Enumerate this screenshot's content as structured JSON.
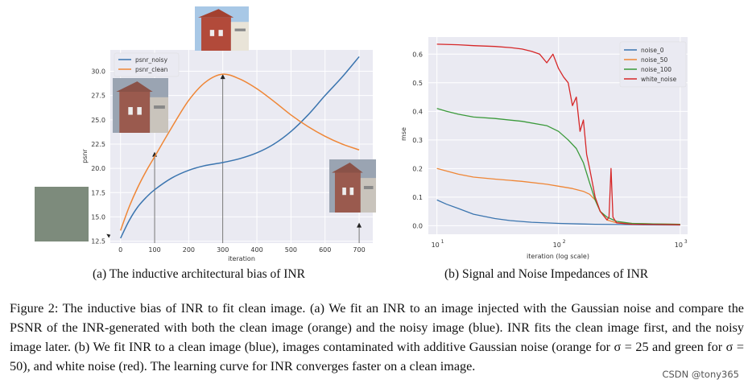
{
  "chart_data": [
    {
      "type": "line",
      "xlabel": "iteration",
      "ylabel": "psnr",
      "xlim": [
        -30,
        740
      ],
      "ylim": [
        12.3,
        32.2
      ],
      "xticks": [
        0,
        100,
        200,
        300,
        400,
        500,
        600,
        700
      ],
      "yticks": [
        12.5,
        15.0,
        17.5,
        20.0,
        22.5,
        25.0,
        27.5,
        30.0
      ],
      "ytick_labels": [
        "12.5",
        "15.0",
        "17.5",
        "20.0",
        "22.5",
        "25.0",
        "27.5",
        "30.0"
      ],
      "legend_position": "top-left",
      "grid": true,
      "series": [
        {
          "name": "psnr_noisy",
          "color": "#3b75af",
          "x": [
            0,
            25,
            50,
            75,
            100,
            150,
            200,
            250,
            300,
            350,
            400,
            450,
            500,
            550,
            600,
            650,
            700
          ],
          "y": [
            12.8,
            14.6,
            16.0,
            17.0,
            17.8,
            19.0,
            19.8,
            20.3,
            20.6,
            21.0,
            21.6,
            22.5,
            23.8,
            25.5,
            27.5,
            29.4,
            31.5
          ]
        },
        {
          "name": "psnr_clean",
          "color": "#ef8636",
          "x": [
            0,
            25,
            50,
            75,
            100,
            150,
            200,
            250,
            300,
            350,
            400,
            450,
            500,
            550,
            600,
            650,
            700
          ],
          "y": [
            13.6,
            16.0,
            18.0,
            19.7,
            21.2,
            24.2,
            27.0,
            28.9,
            29.7,
            29.2,
            28.2,
            26.9,
            25.5,
            24.3,
            23.3,
            22.5,
            21.9
          ]
        }
      ],
      "annotation_arrows_x": [
        -20,
        100,
        300,
        700
      ],
      "annotation_arrows_y": [
        12.5,
        21.7,
        29.7,
        14.4
      ]
    },
    {
      "type": "line",
      "xlabel": "iteration (log scale)",
      "ylabel": "mse",
      "xscale": "log",
      "xlim": [
        8.5,
        1150
      ],
      "ylim": [
        -0.03,
        0.66
      ],
      "xticks": [
        10,
        100,
        1000
      ],
      "xtick_base": "10",
      "xtick_exponents": [
        "1",
        "2",
        "3"
      ],
      "yticks": [
        0.0,
        0.1,
        0.2,
        0.3,
        0.4,
        0.5,
        0.6
      ],
      "ytick_labels": [
        "0.0",
        "0.1",
        "0.2",
        "0.3",
        "0.4",
        "0.5",
        "0.6"
      ],
      "legend_position": "top-right",
      "grid": true,
      "series": [
        {
          "name": "noise_0",
          "color": "#3b75af",
          "x": [
            10,
            12,
            15,
            20,
            30,
            40,
            60,
            100,
            150,
            200,
            300,
            500,
            1000
          ],
          "y": [
            0.09,
            0.075,
            0.06,
            0.04,
            0.025,
            0.018,
            0.012,
            0.008,
            0.006,
            0.005,
            0.004,
            0.003,
            0.002
          ]
        },
        {
          "name": "noise_50",
          "color": "#ef8636",
          "x": [
            10,
            15,
            20,
            30,
            50,
            80,
            100,
            130,
            160,
            180,
            200,
            220,
            250,
            300,
            400,
            600,
            1000
          ],
          "y": [
            0.2,
            0.18,
            0.17,
            0.163,
            0.155,
            0.145,
            0.138,
            0.13,
            0.12,
            0.11,
            0.09,
            0.05,
            0.02,
            0.01,
            0.008,
            0.006,
            0.005
          ]
        },
        {
          "name": "noise_100",
          "color": "#3b9a3b",
          "x": [
            10,
            12,
            15,
            20,
            30,
            50,
            80,
            100,
            120,
            140,
            160,
            180,
            200,
            220,
            250,
            300,
            400,
            600,
            1000
          ],
          "y": [
            0.41,
            0.4,
            0.39,
            0.38,
            0.375,
            0.365,
            0.35,
            0.33,
            0.3,
            0.27,
            0.22,
            0.15,
            0.09,
            0.05,
            0.03,
            0.015,
            0.008,
            0.006,
            0.005
          ]
        },
        {
          "name": "white_noise",
          "color": "#d62728",
          "x": [
            10,
            15,
            20,
            30,
            40,
            50,
            60,
            70,
            80,
            90,
            100,
            110,
            120,
            130,
            140,
            150,
            160,
            170,
            180,
            200,
            220,
            250,
            260,
            270,
            280,
            300,
            400,
            600,
            1000
          ],
          "y": [
            0.635,
            0.633,
            0.63,
            0.627,
            0.623,
            0.618,
            0.61,
            0.6,
            0.57,
            0.6,
            0.55,
            0.52,
            0.5,
            0.42,
            0.45,
            0.33,
            0.37,
            0.25,
            0.2,
            0.1,
            0.05,
            0.02,
            0.03,
            0.2,
            0.03,
            0.01,
            0.005,
            0.004,
            0.003
          ]
        }
      ]
    }
  ],
  "captions": {
    "a": "(a) The inductive architectural bias of INR",
    "b": "(b) Signal and Noise Impedances of INR"
  },
  "figure_caption": "Figure 2: The inductive bias of INR to fit clean image. (a) We fit an INR to an image injected with the Gaussian noise and compare the PSNR of the INR-generated with both the clean image (orange) and the noisy image (blue). INR fits the clean image first, and the noisy image later. (b) We fit INR to a clean image (blue), images contaminated with additive Gaussian noise (orange for σ = 25 and green for σ = 50), and white noise (red). The learning curve for INR converges faster on a clean image.",
  "watermark": "CSDN @tony365",
  "colors": {
    "panel_bg": "#eaeaf2",
    "grid": "#ffffff",
    "noise_swatch": "#7d8b7c",
    "arrow": "#555555"
  }
}
